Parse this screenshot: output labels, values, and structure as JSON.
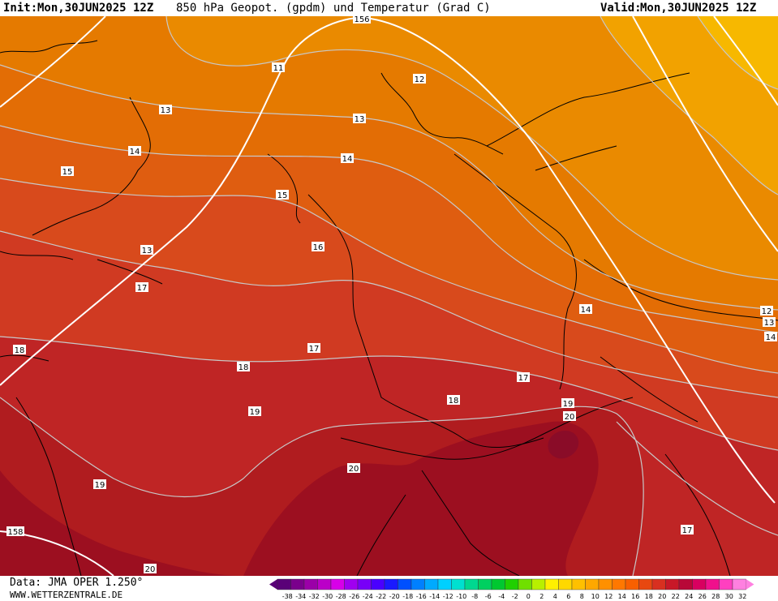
{
  "header": {
    "init_label": "Init:",
    "init_value": "Mon,30JUN2025 12Z",
    "title": "850 hPa Geopot. (gpdm) und Temperatur (Grad C)",
    "valid_label": "Valid:",
    "valid_value": "Mon,30JUN2025 12Z"
  },
  "footer": {
    "data_source": "Data: JMA OPER 1.250°",
    "website": "WWW.WETTERZENTRALE.DE"
  },
  "colors": {
    "band_9": "#f7b800",
    "band_10": "#f2a200",
    "band_11": "#ea8a00",
    "band_12": "#e57a00",
    "band_13": "#e36d05",
    "band_14": "#df5d10",
    "band_15": "#d84a1c",
    "band_16": "#d03a22",
    "band_18": "#bf2525",
    "band_19": "#b01c1f",
    "band_20": "#9c0f20",
    "band_22": "#8a0c28",
    "isotherm": "#c8c8c8",
    "geopotential": "#ffffff",
    "coastline": "#000000"
  },
  "temperature_labels": [
    {
      "text": "11"
    },
    {
      "text": "12"
    },
    {
      "text": "13"
    },
    {
      "text": "13"
    },
    {
      "text": "14"
    },
    {
      "text": "14"
    },
    {
      "text": "15"
    },
    {
      "text": "16"
    },
    {
      "text": "13"
    },
    {
      "text": "17"
    },
    {
      "text": "18"
    },
    {
      "text": "17"
    },
    {
      "text": "18"
    },
    {
      "text": "19"
    },
    {
      "text": "19"
    },
    {
      "text": "18"
    },
    {
      "text": "17"
    },
    {
      "text": "19"
    },
    {
      "text": "14"
    },
    {
      "text": "12"
    },
    {
      "text": "13"
    },
    {
      "text": "14"
    },
    {
      "text": "17"
    }
  ],
  "geopotential_labels": [
    {
      "text": "156"
    },
    {
      "text": "15"
    },
    {
      "text": "20"
    },
    {
      "text": "20"
    },
    {
      "text": "158"
    },
    {
      "text": "20"
    }
  ],
  "legend": {
    "ticks": [
      "-38",
      "-34",
      "-32",
      "-30",
      "-28",
      "-26",
      "-24",
      "-22",
      "-20",
      "-18",
      "-16",
      "-14",
      "-12",
      "-10",
      "-8",
      "-6",
      "-4",
      "-2",
      "0",
      "2",
      "4",
      "6",
      "8",
      "10",
      "12",
      "14",
      "16",
      "18",
      "20",
      "22",
      "24",
      "26",
      "28",
      "30",
      "32"
    ],
    "swatches": [
      "#5a0078",
      "#7a008c",
      "#9b00a8",
      "#bb00c8",
      "#d800e8",
      "#a000f0",
      "#7800f8",
      "#4a00ff",
      "#1a1aff",
      "#0050ff",
      "#0080ff",
      "#00aaff",
      "#00d0ff",
      "#00e0d0",
      "#00d890",
      "#00d060",
      "#00c830",
      "#20d000",
      "#70e000",
      "#b8f000",
      "#fff000",
      "#ffd800",
      "#ffc000",
      "#ffa800",
      "#ff9000",
      "#ff7800",
      "#f86000",
      "#e84810",
      "#d83020",
      "#c81828",
      "#b80838",
      "#d80060",
      "#f0108c",
      "#ff40c0",
      "#ff80e0"
    ]
  }
}
